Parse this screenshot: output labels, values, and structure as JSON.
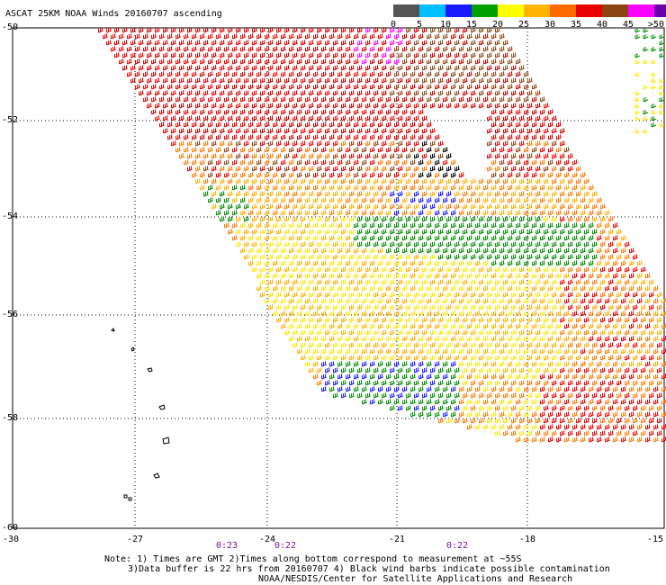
{
  "title": "ASCAT 25KM NOAA Winds 20160707 ascending",
  "legend": {
    "labels": [
      "0",
      "5",
      "10",
      "15",
      "20",
      "25",
      "30",
      "35",
      "40",
      "45",
      ">50 knots"
    ],
    "colors": [
      "#555555",
      "#00bfff",
      "#1a1aff",
      "#00a000",
      "#ffff00",
      "#ffb400",
      "#ff6a00",
      "#e60000",
      "#8b4513",
      "#ff00ff",
      "#6a00a8"
    ]
  },
  "axes": {
    "lat_labels": [
      "-50",
      "-52",
      "-54",
      "-56",
      "-58",
      "-60"
    ],
    "lon_labels": [
      "-30",
      "-27",
      "-24",
      "-21",
      "-18",
      "-15"
    ]
  },
  "times": [
    "0:23",
    "0:22",
    "0:22"
  ],
  "notes": [
    "Note: 1) Times are GMT 2)Times along bottom correspond to measurement at ~55S",
    "3)Data buffer is 22 hrs from 20160707 4) Black wind barbs indicate possible contamination",
    "NOAA/NESDIS/Center for Satellite Applications and Research"
  ],
  "wind_colors": {
    "red": "#e60000",
    "dark_red": "#c80000",
    "brown": "#8b4513",
    "orange": "#ff7a00",
    "gold": "#ffb000",
    "yellow": "#ffe600",
    "green": "#008c00",
    "blue": "#1a1aff",
    "magenta": "#ff00ff",
    "black": "#000000"
  }
}
